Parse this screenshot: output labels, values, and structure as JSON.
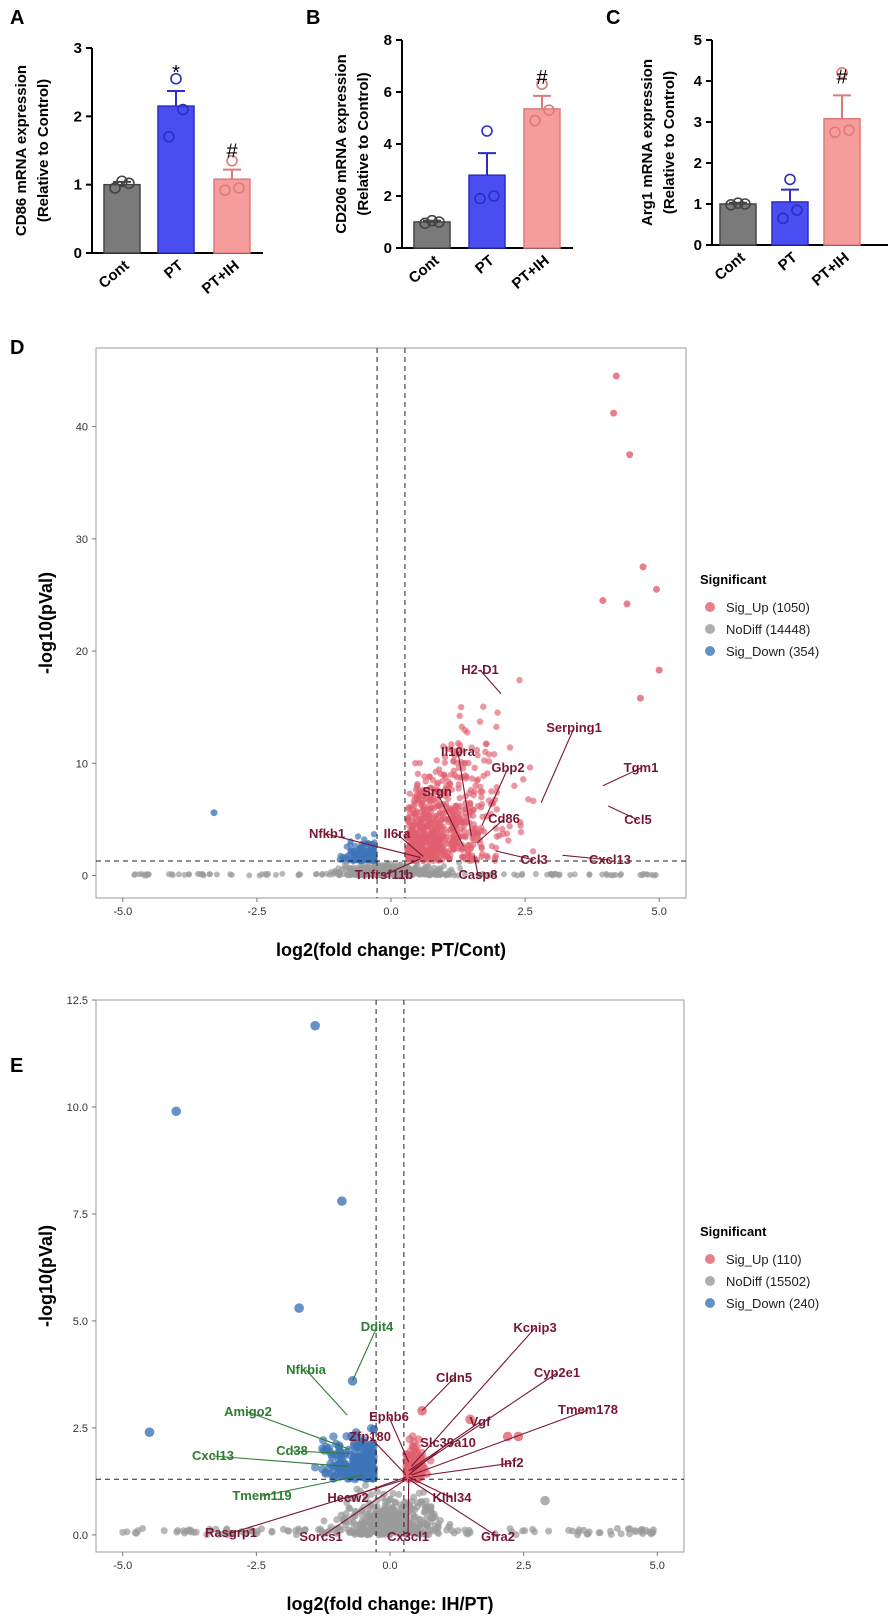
{
  "colors": {
    "cont": "#7a7a7a",
    "pt": "#4a4ef0",
    "ptih": "#f59c9c",
    "sig_up": "#e0606f",
    "nodiff": "#9a9a9a",
    "sig_down": "#3e75b8",
    "label_up": "#7b1631",
    "label_down": "#2e7d32"
  },
  "chart_data": [
    {
      "panel": "A",
      "type": "bar",
      "categories": [
        "Cont",
        "PT",
        "PT+IH"
      ],
      "values": [
        1.0,
        2.15,
        1.08
      ],
      "errors": [
        0.04,
        0.22,
        0.14
      ],
      "points": [
        [
          0.95,
          1.02,
          1.05
        ],
        [
          1.7,
          2.1,
          2.55
        ],
        [
          0.92,
          0.95,
          1.35
        ]
      ],
      "ylabel_line1": "CD86 mRNA expression",
      "ylabel_line2": "(Relative to Control)",
      "ylim": [
        0,
        3
      ],
      "yticks": [
        "0",
        "1",
        "2",
        "3"
      ],
      "significance": [
        "",
        "*",
        "#"
      ]
    },
    {
      "panel": "B",
      "type": "bar",
      "categories": [
        "Cont",
        "PT",
        "PT+IH"
      ],
      "values": [
        1.0,
        2.8,
        5.35
      ],
      "errors": [
        0.05,
        0.85,
        0.5
      ],
      "points": [
        [
          0.95,
          1.0,
          1.05
        ],
        [
          1.9,
          2.0,
          4.5
        ],
        [
          4.9,
          5.3,
          6.3
        ]
      ],
      "ylabel_line1": "CD206 mRNA expression",
      "ylabel_line2": "(Relative to Control)",
      "ylim": [
        0,
        8
      ],
      "yticks": [
        "0",
        "2",
        "4",
        "6",
        "8"
      ],
      "significance": [
        "",
        "",
        "#"
      ]
    },
    {
      "panel": "C",
      "type": "bar",
      "categories": [
        "Cont",
        "PT",
        "PT+IH"
      ],
      "values": [
        1.0,
        1.05,
        3.08
      ],
      "errors": [
        0.03,
        0.3,
        0.57
      ],
      "points": [
        [
          0.98,
          1.0,
          1.02
        ],
        [
          0.65,
          0.85,
          1.6
        ],
        [
          2.75,
          2.8,
          4.2
        ]
      ],
      "ylabel_line1": "Arg1 mRNA expression",
      "ylabel_line2": "(Relative to Control)",
      "ylim": [
        0,
        5
      ],
      "yticks": [
        "0",
        "1",
        "2",
        "3",
        "4",
        "5"
      ],
      "significance": [
        "",
        "",
        "#"
      ]
    },
    {
      "panel": "D",
      "type": "scatter",
      "xlabel": "log2(fold change: PT/Cont)",
      "ylabel": "-log10(pVal)",
      "xlim": [
        -5.5,
        5.5
      ],
      "ylim": [
        -2,
        47
      ],
      "xticks": [
        "-5.0",
        "-2.5",
        "0.0",
        "2.5",
        "5.0"
      ],
      "yticks": [
        "0",
        "10",
        "20",
        "30",
        "40"
      ],
      "thresholds": {
        "x": [
          -0.26,
          0.26
        ],
        "y": 1.3
      },
      "legend": {
        "title": "Significant",
        "items": [
          {
            "label": "Sig_Up (1050)",
            "group": "up"
          },
          {
            "label": "NoDiff (14448)",
            "group": "nodiff"
          },
          {
            "label": "Sig_Down (354)",
            "group": "down"
          }
        ]
      },
      "highlight_points": [
        {
          "x": 4.2,
          "y": 44.5
        },
        {
          "x": 4.15,
          "y": 41.2
        },
        {
          "x": 4.45,
          "y": 37.5
        },
        {
          "x": 4.7,
          "y": 27.5
        },
        {
          "x": 4.95,
          "y": 25.5
        },
        {
          "x": 3.95,
          "y": 24.5
        },
        {
          "x": 4.4,
          "y": 24.2
        },
        {
          "x": 5.0,
          "y": 18.3
        },
        {
          "x": 4.65,
          "y": 15.8
        },
        {
          "x": -3.3,
          "y": 5.6
        }
      ],
      "labels": [
        {
          "gene": "H2-D1",
          "x": 2.05,
          "y": 16.2
        },
        {
          "gene": "Serping1",
          "x": 2.8,
          "y": 6.5
        },
        {
          "gene": "Il10ra",
          "x": 1.5,
          "y": 3.5
        },
        {
          "gene": "Gbp2",
          "x": 1.7,
          "y": 4.5
        },
        {
          "gene": "Tgm1",
          "x": 3.95,
          "y": 8.0
        },
        {
          "gene": "Srgn",
          "x": 1.35,
          "y": 2.6
        },
        {
          "gene": "Ccl5",
          "x": 4.05,
          "y": 6.2
        },
        {
          "gene": "Cd86",
          "x": 1.6,
          "y": 2.9
        },
        {
          "gene": "Nfkb1",
          "x": 0.55,
          "y": 1.6
        },
        {
          "gene": "Il6ra",
          "x": 0.6,
          "y": 1.7
        },
        {
          "gene": "Ccl3",
          "x": 1.95,
          "y": 2.2
        },
        {
          "gene": "Cxcl13",
          "x": 3.2,
          "y": 1.8
        },
        {
          "gene": "Tnfrsf11b",
          "x": 0.55,
          "y": 1.5
        },
        {
          "gene": "Casp8",
          "x": 1.55,
          "y": 1.8
        }
      ]
    },
    {
      "panel": "E",
      "type": "scatter",
      "xlabel": "log2(fold change: IH/PT)",
      "ylabel": "-log10(pVal)",
      "xlim": [
        -5.5,
        5.5
      ],
      "ylim": [
        -0.4,
        12.5
      ],
      "xticks": [
        "-5.0",
        "-2.5",
        "0.0",
        "2.5",
        "5.0"
      ],
      "yticks": [
        "0.0",
        "2.5",
        "5.0",
        "7.5",
        "10.0",
        "12.5"
      ],
      "thresholds": {
        "x": [
          -0.26,
          0.26
        ],
        "y": 1.3
      },
      "legend": {
        "title": "Significant",
        "items": [
          {
            "label": "Sig_Up (110)",
            "group": "up"
          },
          {
            "label": "NoDiff (15502)",
            "group": "nodiff"
          },
          {
            "label": "Sig_Down (240)",
            "group": "down"
          }
        ]
      },
      "highlight_points": [
        {
          "x": -1.4,
          "y": 11.9
        },
        {
          "x": -4.0,
          "y": 9.9
        },
        {
          "x": -0.9,
          "y": 7.8
        },
        {
          "x": -1.7,
          "y": 5.3
        },
        {
          "x": -4.5,
          "y": 2.4
        },
        {
          "x": -0.7,
          "y": 3.6
        },
        {
          "x": 0.6,
          "y": 2.9
        },
        {
          "x": 1.5,
          "y": 2.7
        },
        {
          "x": 2.2,
          "y": 2.3
        },
        {
          "x": 2.4,
          "y": 2.3
        },
        {
          "x": 2.9,
          "y": 0.8
        }
      ],
      "labels_up": [
        {
          "gene": "Cldn5",
          "x": 0.6,
          "y": 2.9
        },
        {
          "gene": "Kcnip3",
          "x": 0.4,
          "y": 1.6
        },
        {
          "gene": "Cyp2e1",
          "x": 0.4,
          "y": 1.5
        },
        {
          "gene": "Ephb6",
          "x": 0.35,
          "y": 1.7
        },
        {
          "gene": "Vgf",
          "x": 0.35,
          "y": 1.5
        },
        {
          "gene": "Tmem178",
          "x": 0.4,
          "y": 1.4
        },
        {
          "gene": "Zfp180",
          "x": 0.3,
          "y": 1.4
        },
        {
          "gene": "Slc39a10",
          "x": 0.35,
          "y": 1.4
        },
        {
          "gene": "Inf2",
          "x": 0.4,
          "y": 1.35
        },
        {
          "gene": "Hecw2",
          "x": 0.3,
          "y": 1.35
        },
        {
          "gene": "Klhl34",
          "x": 0.35,
          "y": 1.35
        },
        {
          "gene": "Rasgrp1",
          "x": 0.3,
          "y": 1.3
        },
        {
          "gene": "Sorcs1",
          "x": 0.3,
          "y": 1.3
        },
        {
          "gene": "Cx3cl1",
          "x": 0.35,
          "y": 1.3
        },
        {
          "gene": "Gfra2",
          "x": 0.35,
          "y": 1.3
        }
      ],
      "labels_down": [
        {
          "gene": "Ddit4",
          "x": -0.7,
          "y": 3.6
        },
        {
          "gene": "Nfkbia",
          "x": -0.8,
          "y": 2.8
        },
        {
          "gene": "Amigo2",
          "x": -0.75,
          "y": 2.0
        },
        {
          "gene": "Cxcl13",
          "x": -0.8,
          "y": 1.6
        },
        {
          "gene": "Cd38",
          "x": -0.75,
          "y": 1.9
        },
        {
          "gene": "Tmem119",
          "x": -0.5,
          "y": 1.4
        }
      ]
    }
  ]
}
